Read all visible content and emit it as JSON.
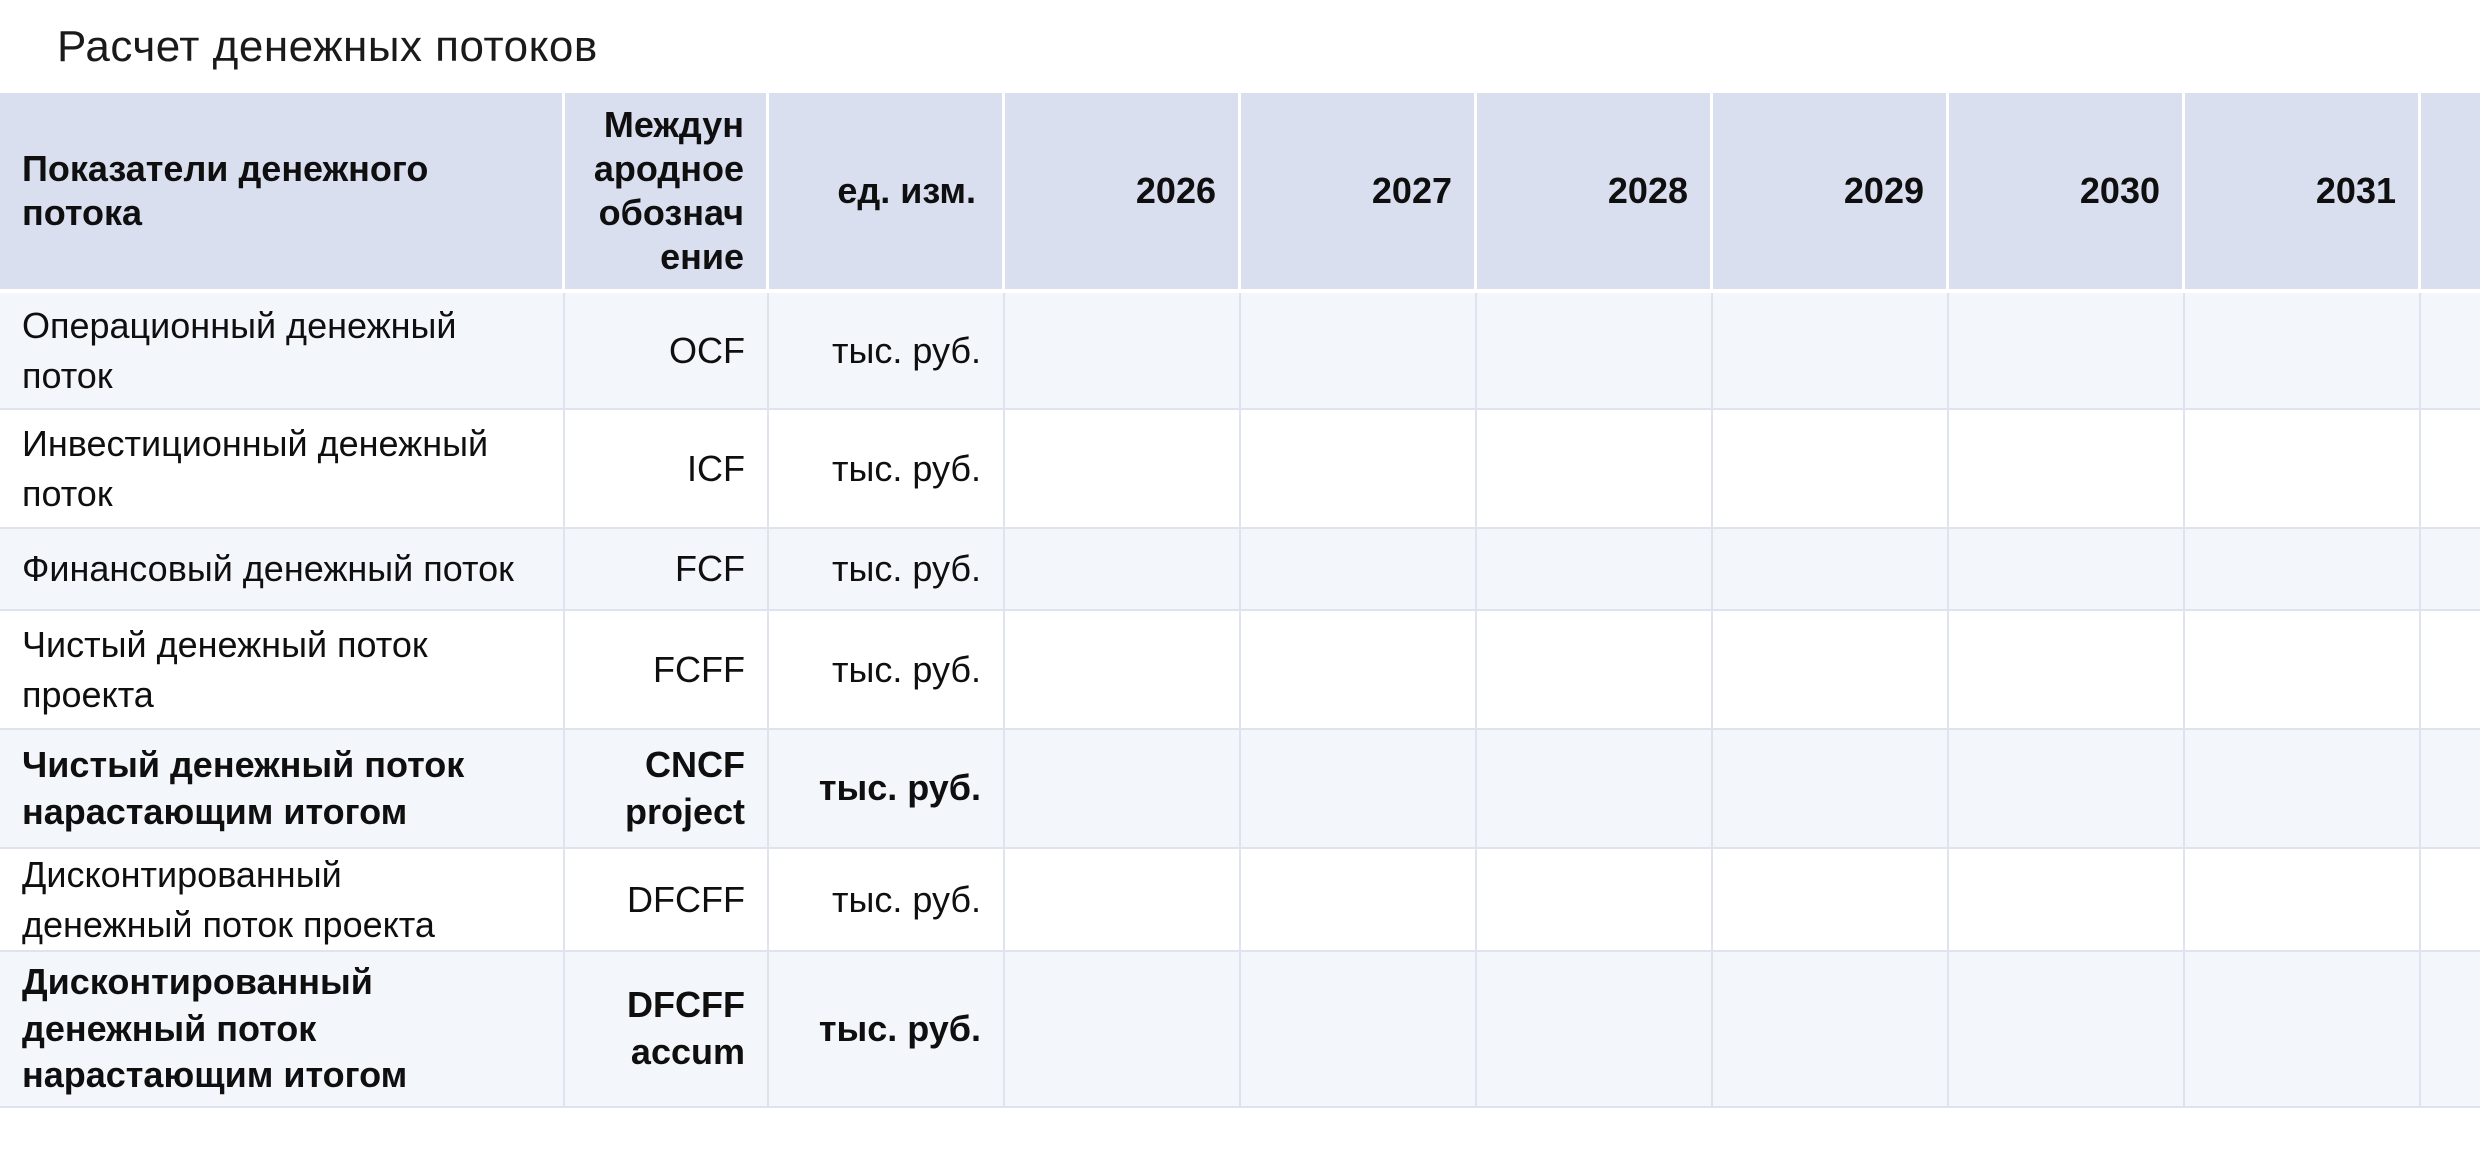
{
  "title": "Расчет денежных потоков",
  "table": {
    "headers": {
      "indicator": "Показатели денежного\nпотока",
      "code": "Междун\nародное\nобознач\nение",
      "unit": "ед. изм.",
      "years": [
        "2026",
        "2027",
        "2028",
        "2029",
        "2030",
        "2031"
      ]
    },
    "rows": [
      {
        "indicator": "Операционный денежный\nпоток",
        "code": "OCF",
        "unit": "тыс. руб.",
        "bold": false,
        "values": [
          "",
          "",
          "",
          "",
          "",
          ""
        ]
      },
      {
        "indicator": "Инвестиционный денежный\nпоток",
        "code": "ICF",
        "unit": "тыс. руб.",
        "bold": false,
        "values": [
          "",
          "",
          "",
          "",
          "",
          ""
        ]
      },
      {
        "indicator": "Финансовый денежный поток",
        "code": "FCF",
        "unit": "тыс. руб.",
        "bold": false,
        "values": [
          "",
          "",
          "",
          "",
          "",
          ""
        ]
      },
      {
        "indicator": "Чистый денежный поток\nпроекта",
        "code": "FCFF",
        "unit": "тыс. руб.",
        "bold": false,
        "values": [
          "",
          "",
          "",
          "",
          "",
          ""
        ]
      },
      {
        "indicator": "Чистый денежный поток\nнарастающим итогом",
        "code": "CNCF project",
        "unit": "тыс. руб.",
        "bold": true,
        "values": [
          "",
          "",
          "",
          "",
          "",
          ""
        ]
      },
      {
        "indicator": "Дисконтированный\nденежный поток проекта",
        "code": "DFCFF",
        "unit": "тыс. руб.",
        "bold": false,
        "values": [
          "",
          "",
          "",
          "",
          "",
          ""
        ]
      },
      {
        "indicator": "Дисконтированный\nденежный поток\nнарастающим итогом",
        "code": "DFCFF accum",
        "unit": "тыс. руб.",
        "bold": true,
        "values": [
          "",
          "",
          "",
          "",
          "",
          ""
        ]
      }
    ]
  },
  "colors": {
    "header_background": "#dadff0",
    "row_band_light": "#f3f6fa",
    "row_band_white": "#ffffff",
    "body_border": "#dfe3ed",
    "header_border": "#ffffff",
    "text": "#0f0f0f"
  }
}
